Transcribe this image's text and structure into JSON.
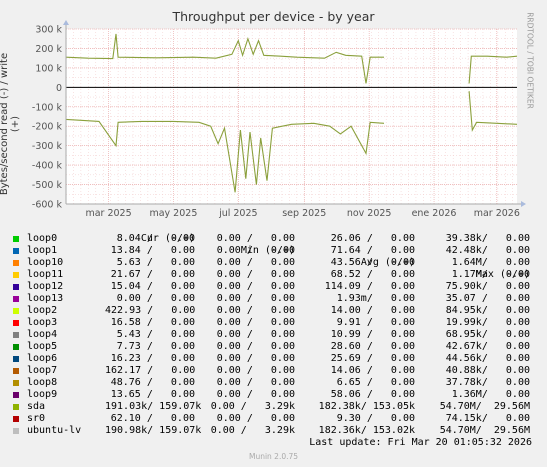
{
  "chart_data": {
    "type": "line",
    "title": "Throughput per device - by year",
    "ylabel": "Bytes/second read (-) / write (+)",
    "ylim": [
      -600000,
      300000
    ],
    "yticks": [
      {
        "v": 300000,
        "l": "300 k"
      },
      {
        "v": 200000,
        "l": "200 k"
      },
      {
        "v": 100000,
        "l": "100 k"
      },
      {
        "v": 0,
        "l": "0"
      },
      {
        "v": -100000,
        "l": "-100 k"
      },
      {
        "v": -200000,
        "l": "-200 k"
      },
      {
        "v": -300000,
        "l": "-300 k"
      },
      {
        "v": -400000,
        "l": "-400 k"
      },
      {
        "v": -500000,
        "l": "-500 k"
      },
      {
        "v": -600000,
        "l": "-600 k"
      }
    ],
    "xlim": [
      "2025-01-20",
      "2026-03-20"
    ],
    "xticks": [
      {
        "d": "2025-03-01",
        "l": "mar 2025"
      },
      {
        "d": "2025-05-01",
        "l": "may 2025"
      },
      {
        "d": "2025-07-01",
        "l": "jul 2025"
      },
      {
        "d": "2025-09-01",
        "l": "sep 2025"
      },
      {
        "d": "2025-11-01",
        "l": "nov 2025"
      },
      {
        "d": "2026-01-01",
        "l": "ene 2026"
      },
      {
        "d": "2026-03-01",
        "l": "mar 2026"
      }
    ],
    "grid": true,
    "series": [
      {
        "name": "sda write",
        "color": "#8ba03c",
        "points": [
          [
            "2025-01-20",
            155000
          ],
          [
            "2025-02-10",
            150000
          ],
          [
            "2025-03-05",
            148000
          ],
          [
            "2025-03-08",
            275000
          ],
          [
            "2025-03-10",
            155000
          ],
          [
            "2025-04-15",
            152000
          ],
          [
            "2025-05-20",
            155000
          ],
          [
            "2025-06-10",
            150000
          ],
          [
            "2025-06-25",
            170000
          ],
          [
            "2025-07-01",
            240000
          ],
          [
            "2025-07-05",
            165000
          ],
          [
            "2025-07-10",
            250000
          ],
          [
            "2025-07-15",
            170000
          ],
          [
            "2025-07-20",
            240000
          ],
          [
            "2025-07-25",
            165000
          ],
          [
            "2025-08-10",
            160000
          ],
          [
            "2025-08-25",
            155000
          ],
          [
            "2025-09-20",
            150000
          ],
          [
            "2025-10-01",
            180000
          ],
          [
            "2025-10-10",
            165000
          ],
          [
            "2025-10-25",
            160000
          ],
          [
            "2025-10-29",
            20000
          ],
          [
            "2025-11-02",
            155000
          ],
          [
            "2025-11-15",
            155000
          ],
          [
            "2025-11-20",
            null
          ],
          [
            "2026-02-01",
            null
          ],
          [
            "2026-02-03",
            20000
          ],
          [
            "2026-02-05",
            160000
          ],
          [
            "2026-02-20",
            160000
          ],
          [
            "2026-03-10",
            155000
          ],
          [
            "2026-03-20",
            160000
          ]
        ]
      },
      {
        "name": "sda read",
        "color": "#8ba03c",
        "points": [
          [
            "2025-01-20",
            -165000
          ],
          [
            "2025-02-05",
            -170000
          ],
          [
            "2025-02-20",
            -175000
          ],
          [
            "2025-03-08",
            -300000
          ],
          [
            "2025-03-10",
            -180000
          ],
          [
            "2025-04-01",
            -175000
          ],
          [
            "2025-05-01",
            -175000
          ],
          [
            "2025-05-25",
            -180000
          ],
          [
            "2025-06-05",
            -200000
          ],
          [
            "2025-06-12",
            -290000
          ],
          [
            "2025-06-18",
            -210000
          ],
          [
            "2025-06-28",
            -540000
          ],
          [
            "2025-07-03",
            -220000
          ],
          [
            "2025-07-08",
            -470000
          ],
          [
            "2025-07-12",
            -230000
          ],
          [
            "2025-07-18",
            -500000
          ],
          [
            "2025-07-22",
            -260000
          ],
          [
            "2025-07-28",
            -480000
          ],
          [
            "2025-08-02",
            -210000
          ],
          [
            "2025-08-20",
            -190000
          ],
          [
            "2025-09-10",
            -185000
          ],
          [
            "2025-09-25",
            -200000
          ],
          [
            "2025-10-05",
            -240000
          ],
          [
            "2025-10-15",
            -200000
          ],
          [
            "2025-10-29",
            -340000
          ],
          [
            "2025-11-02",
            -180000
          ],
          [
            "2025-11-15",
            -185000
          ],
          [
            "2025-11-20",
            null
          ],
          [
            "2026-02-01",
            null
          ],
          [
            "2026-02-03",
            -20000
          ],
          [
            "2026-02-06",
            -220000
          ],
          [
            "2026-02-10",
            -180000
          ],
          [
            "2026-03-01",
            -185000
          ],
          [
            "2026-03-20",
            -190000
          ]
        ]
      }
    ]
  },
  "legend": {
    "headers": {
      "cur": "Cur (-/+)",
      "min": "Min (-/+)",
      "avg": "Avg (-/+)",
      "max": "Max (-/+)"
    },
    "rows": [
      {
        "name": "loop0",
        "color": "#00cc00",
        "cur": "8.04 /   0.00",
        "min": "0.00 /   0.00",
        "avg": "26.06 /   0.00",
        "max": "39.38k/   0.00"
      },
      {
        "name": "loop1",
        "color": "#0066b3",
        "cur": "13.84 /   0.00",
        "min": "0.00 /   0.00",
        "avg": "71.64 /   0.00",
        "max": "42.48k/   0.00"
      },
      {
        "name": "loop10",
        "color": "#ff8000",
        "cur": "5.63 /   0.00",
        "min": "0.00 /   0.00",
        "avg": "43.56 /   0.00",
        "max": "1.64M/   0.00"
      },
      {
        "name": "loop11",
        "color": "#ffcc00",
        "cur": "21.67 /   0.00",
        "min": "0.00 /   0.00",
        "avg": "68.52 /   0.00",
        "max": "1.17M/   0.00"
      },
      {
        "name": "loop12",
        "color": "#330099",
        "cur": "15.04 /   0.00",
        "min": "0.00 /   0.00",
        "avg": "114.09 /   0.00",
        "max": "75.90k/   0.00"
      },
      {
        "name": "loop13",
        "color": "#990099",
        "cur": "0.00 /   0.00",
        "min": "0.00 /   0.00",
        "avg": "1.93m/   0.00",
        "max": "35.07 /   0.00"
      },
      {
        "name": "loop2",
        "color": "#ccff00",
        "cur": "422.93 /   0.00",
        "min": "0.00 /   0.00",
        "avg": "14.00 /   0.00",
        "max": "84.95k/   0.00"
      },
      {
        "name": "loop3",
        "color": "#ff0000",
        "cur": "16.58 /   0.00",
        "min": "0.00 /   0.00",
        "avg": "9.91 /   0.00",
        "max": "19.99k/   0.00"
      },
      {
        "name": "loop4",
        "color": "#808080",
        "cur": "5.43 /   0.00",
        "min": "0.00 /   0.00",
        "avg": "10.99 /   0.00",
        "max": "68.95k/   0.00"
      },
      {
        "name": "loop5",
        "color": "#008f00",
        "cur": "7.73 /   0.00",
        "min": "0.00 /   0.00",
        "avg": "28.60 /   0.00",
        "max": "42.67k/   0.00"
      },
      {
        "name": "loop6",
        "color": "#00487d",
        "cur": "16.23 /   0.00",
        "min": "0.00 /   0.00",
        "avg": "25.69 /   0.00",
        "max": "44.56k/   0.00"
      },
      {
        "name": "loop7",
        "color": "#b35a00",
        "cur": "162.17 /   0.00",
        "min": "0.00 /   0.00",
        "avg": "14.06 /   0.00",
        "max": "40.88k/   0.00"
      },
      {
        "name": "loop8",
        "color": "#b38f00",
        "cur": "48.76 /   0.00",
        "min": "0.00 /   0.00",
        "avg": "6.65 /   0.00",
        "max": "37.78k/   0.00"
      },
      {
        "name": "loop9",
        "color": "#6b006b",
        "cur": "13.65 /   0.00",
        "min": "0.00 /   0.00",
        "avg": "58.06 /   0.00",
        "max": "1.36M/   0.00"
      },
      {
        "name": "sda",
        "color": "#8fb300",
        "cur": "191.03k/ 159.07k",
        "min": "0.00 /   3.29k",
        "avg": "182.38k/ 153.05k",
        "max": "54.70M/  29.56M"
      },
      {
        "name": "sr0",
        "color": "#b30000",
        "cur": "62.10 /   0.00",
        "min": "0.00 /   0.00",
        "avg": "9.30 /   0.00",
        "max": "74.15k/   0.00"
      },
      {
        "name": "ubuntu-lv",
        "color": "#bebebe",
        "cur": "190.98k/ 159.07k",
        "min": "0.00 /   3.29k",
        "avg": "182.36k/ 153.02k",
        "max": "54.70M/  29.56M"
      }
    ]
  },
  "last_update": "Last update: Fri Mar 20 01:05:32 2026",
  "side_label": "RRDTOOL / TOBI OETIKER",
  "footer": "Munin 2.0.75"
}
